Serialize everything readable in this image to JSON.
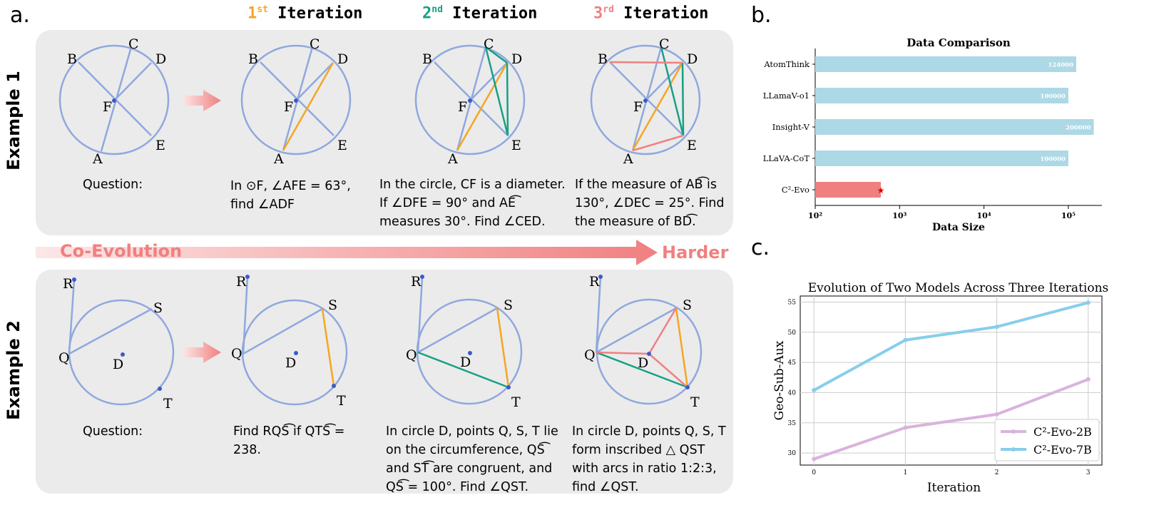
{
  "panels": {
    "a": "a.",
    "b": "b.",
    "c": "c."
  },
  "iterations": [
    {
      "num": "1",
      "sup": "st",
      "word": "Iteration",
      "color": "#f5a623"
    },
    {
      "num": "2",
      "sup": "nd",
      "word": "Iteration",
      "color": "#16a085"
    },
    {
      "num": "3",
      "sup": "rd",
      "word": "Iteration",
      "color": "#f08080"
    }
  ],
  "examples": [
    {
      "label": "Example 1",
      "questions": [
        "Question:",
        "In ⊙F, ∠AFE = 63°, find ∠ADF",
        "In the circle, CF is a diameter. If ∠DFE = 90° and AE͡ measures 30°. Find ∠CED.",
        "If the measure of AB͡ is 130°, ∠DEC = 25°. Find the measure of BD͡."
      ]
    },
    {
      "label": "Example 2",
      "questions": [
        "Question:",
        "Find RQS͡ if QTS͡ = 238.",
        "In circle D, points Q, S, T lie on the circumference, QS͡ and ST͡ are congruent, and QS͡ = 100°. Find ∠QST.",
        "In circle D, points Q, S, T form inscribed △ QST with arcs in ratio 1:2:3, find ∠QST."
      ]
    }
  ],
  "point_labels": {
    "ex1": [
      "A",
      "B",
      "C",
      "D",
      "E",
      "F"
    ],
    "ex2": [
      "R",
      "S",
      "Q",
      "D",
      "T"
    ]
  },
  "band": {
    "left": "Co-Evolution",
    "right": "Harder"
  },
  "chart_data": [
    {
      "type": "bar",
      "orientation": "horizontal",
      "title": "Data Comparison",
      "xlabel": "Data Size",
      "ylabel": "",
      "xscale": "log",
      "xlim": [
        100,
        250000
      ],
      "xticks": [
        "10²",
        "10³",
        "10⁴",
        "10⁵"
      ],
      "categories": [
        "AtomThink",
        "LLamaV-o1",
        "Insight-V",
        "LLaVA-CoT",
        "C²-Evo"
      ],
      "values": [
        124000,
        100000,
        200000,
        100000,
        600
      ],
      "value_labels": [
        "124000",
        "100000",
        "200000",
        "100000",
        ""
      ],
      "colors": [
        "#add8e6",
        "#add8e6",
        "#add8e6",
        "#add8e6",
        "#f08080"
      ],
      "highlight_marker": "★"
    },
    {
      "type": "line",
      "title": "Evolution of Two Models Across Three Iterations",
      "xlabel": "Iteration",
      "ylabel": "Geo-Sub-Aux",
      "x": [
        0,
        1,
        2,
        3
      ],
      "ylim": [
        28,
        56
      ],
      "yticks": [
        30,
        35,
        40,
        45,
        50,
        55
      ],
      "grid": true,
      "legend_position": "bottom-right",
      "series": [
        {
          "name": "C²-Evo-2B",
          "values": [
            29.0,
            34.2,
            36.4,
            42.2
          ],
          "color": "#d8b4dc"
        },
        {
          "name": "C²-Evo-7B",
          "values": [
            40.4,
            48.7,
            50.9,
            54.9
          ],
          "color": "#87ceeb"
        }
      ]
    }
  ]
}
